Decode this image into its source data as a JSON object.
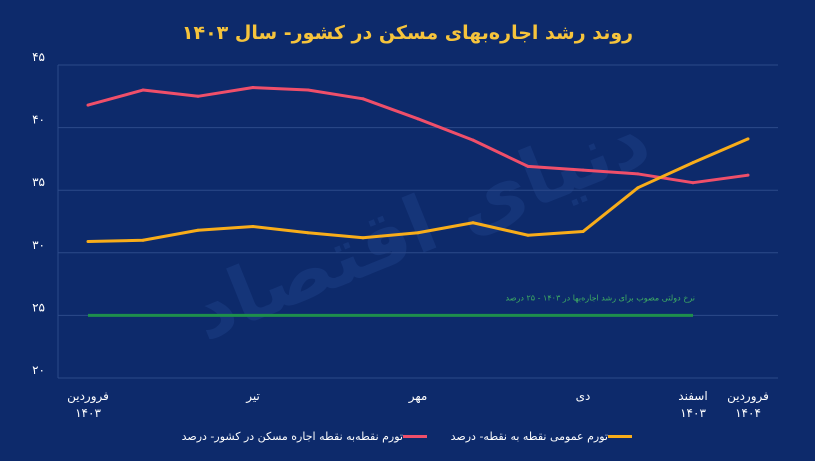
{
  "chart_data": {
    "type": "line",
    "title": "روند رشد اجاره‌بهای مسکن در کشور- سال ۱۴۰۳",
    "xlabel": "",
    "ylabel": "",
    "ylim": [
      20,
      45
    ],
    "yticks": [
      20,
      25,
      30,
      35,
      40,
      45
    ],
    "grid": true,
    "legend": "bottom",
    "x_positions": 13,
    "x_tick_labels": [
      {
        "index": 0,
        "line1": "فروردین",
        "line2": "۱۴۰۳"
      },
      {
        "index": 3,
        "line1": "تیر",
        "line2": ""
      },
      {
        "index": 6,
        "line1": "مهر",
        "line2": ""
      },
      {
        "index": 9,
        "line1": "دی",
        "line2": ""
      },
      {
        "index": 11,
        "line1": "اسفند",
        "line2": "۱۴۰۳"
      },
      {
        "index": 12,
        "line1": "فروردین",
        "line2": "۱۴۰۴"
      }
    ],
    "series": [
      {
        "name": "تورم نقطه‌به نقطه اجاره مسکن در کشور- درصد",
        "color": "#ef4f6a",
        "values": [
          41.8,
          43.0,
          42.5,
          43.2,
          43.0,
          42.3,
          40.7,
          39.0,
          36.9,
          36.6,
          36.3,
          35.6,
          36.2
        ]
      },
      {
        "name": "تورم عمومی نقطه به نقطه- درصد",
        "color": "#f8ad1a",
        "values": [
          30.9,
          31.0,
          31.8,
          32.1,
          31.6,
          31.2,
          31.6,
          32.4,
          31.4,
          31.7,
          35.2,
          37.2,
          39.1
        ]
      }
    ],
    "reference_line": {
      "value": 25,
      "color": "#1e8f4c",
      "label": "نرخ دولتی مصوب برای رشد اجاره‌بها در ۱۴۰۳ - ۲۵ درصد",
      "from_index": 0,
      "to_index": 11
    }
  },
  "watermark": "دنیای اقتصاد"
}
